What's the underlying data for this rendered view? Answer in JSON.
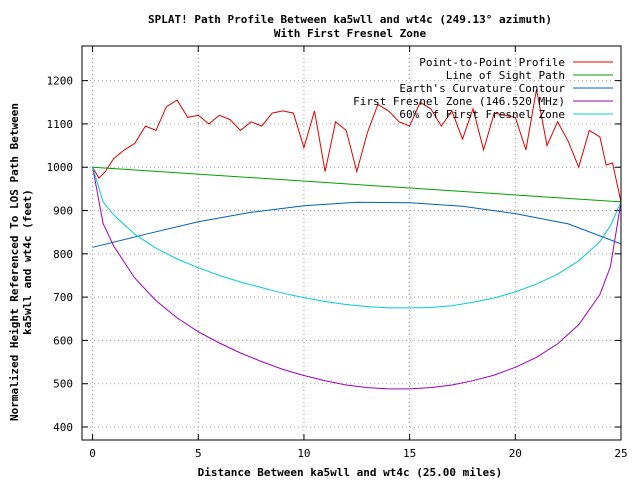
{
  "chart_data": {
    "type": "line",
    "title": "SPLAT! Path Profile Between ka5wll and wt4c (249.13° azimuth)",
    "subtitle": "With First Fresnel Zone",
    "xlabel": "Distance Between ka5wll and wt4c (25.00 miles)",
    "ylabel": "Normalized Height Referenced To LOS Path Between",
    "ylabel2": "ka5wll and wt4c (feet)",
    "xlim": [
      -0.5,
      25
    ],
    "ylim": [
      370,
      1280
    ],
    "x_ticks": [
      0,
      5,
      10,
      15,
      20,
      25
    ],
    "x_tick_labels": [
      "0",
      "5",
      "10",
      "15",
      "20",
      "25"
    ],
    "y_ticks": [
      400,
      500,
      600,
      700,
      800,
      900,
      1000,
      1100,
      1200
    ],
    "y_tick_labels": [
      "400",
      "500",
      "600",
      "700",
      "800",
      "900",
      "1000",
      "1100",
      "1200"
    ],
    "grid": true,
    "legend_position": "top-right",
    "series": [
      {
        "name": "Point-to-Point Profile",
        "color": "#e00000",
        "x": [
          0,
          0.3,
          0.6,
          1,
          1.5,
          2,
          2.5,
          3,
          3.5,
          4,
          4.5,
          5,
          5.5,
          6,
          6.5,
          7,
          7.5,
          8,
          8.5,
          9,
          9.5,
          10,
          10.5,
          11,
          11.5,
          12,
          12.5,
          13,
          13.5,
          14,
          14.5,
          15,
          15.5,
          16,
          16.5,
          17,
          17.5,
          18,
          18.5,
          19,
          19.5,
          20,
          20.5,
          21,
          21.5,
          22,
          22.5,
          23,
          23.5,
          24,
          24.3,
          24.6,
          25
        ],
        "y": [
          1000,
          975,
          990,
          1020,
          1040,
          1055,
          1095,
          1085,
          1140,
          1155,
          1115,
          1120,
          1100,
          1120,
          1110,
          1085,
          1105,
          1095,
          1125,
          1130,
          1125,
          1045,
          1130,
          990,
          1105,
          1085,
          990,
          1080,
          1145,
          1130,
          1105,
          1095,
          1150,
          1135,
          1095,
          1130,
          1065,
          1135,
          1040,
          1125,
          1120,
          1115,
          1040,
          1180,
          1050,
          1105,
          1060,
          1000,
          1085,
          1070,
          1005,
          1010,
          920
        ]
      },
      {
        "name": "Line of Sight Path",
        "color": "#00a000",
        "x": [
          0,
          25
        ],
        "y": [
          1000,
          920
        ]
      },
      {
        "name": "Earth's Curvature Contour",
        "color": "#0060c0",
        "x": [
          0,
          2.5,
          5,
          7.5,
          10,
          12.5,
          15,
          17.5,
          20,
          22.5,
          25
        ],
        "y": [
          815,
          845,
          874,
          896,
          911,
          919,
          918,
          910,
          893,
          869,
          823
        ]
      },
      {
        "name": "First Fresnel Zone (146.520 MHz)",
        "color": "#a000c0",
        "x": [
          0,
          0.5,
          1,
          2,
          3,
          4,
          5,
          6,
          7,
          8,
          9,
          10,
          11,
          12,
          13,
          14,
          15,
          16,
          17,
          18,
          19,
          20,
          21,
          22,
          23,
          24,
          24.5,
          25
        ],
        "y": [
          1000,
          870,
          818,
          744,
          692,
          652,
          620,
          594,
          571,
          551,
          533,
          519,
          507,
          497,
          491,
          488,
          488,
          491,
          497,
          507,
          520,
          538,
          561,
          592,
          636,
          706,
          770,
          920
        ]
      },
      {
        "name": "60% of First Fresnel Zone",
        "color": "#00d0d0",
        "x": [
          0,
          0.5,
          1,
          2,
          3,
          4,
          5,
          6,
          7,
          8,
          9,
          10,
          11,
          12,
          13,
          14,
          15,
          16,
          17,
          18,
          19,
          20,
          21,
          22,
          23,
          24,
          24.5,
          25
        ],
        "y": [
          1000,
          920,
          890,
          845,
          813,
          788,
          768,
          750,
          735,
          722,
          709,
          699,
          690,
          683,
          678,
          675,
          675,
          676,
          680,
          688,
          698,
          712,
          730,
          753,
          784,
          828,
          865,
          920
        ]
      }
    ]
  }
}
